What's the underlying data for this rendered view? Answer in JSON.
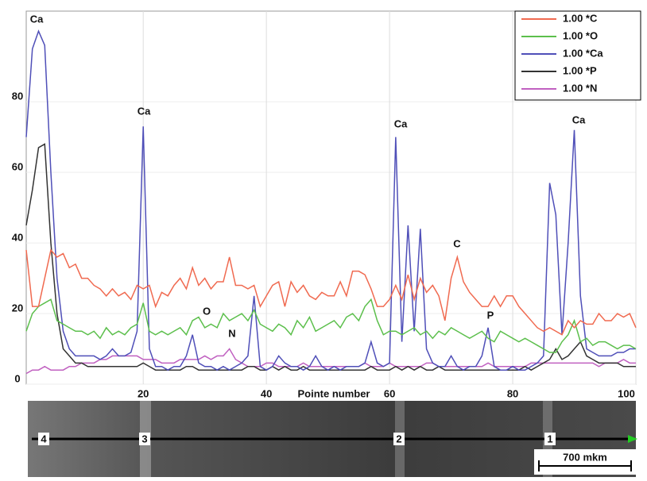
{
  "chart_data": {
    "type": "line",
    "x_label": "Pointe number",
    "x": [
      1,
      2,
      3,
      4,
      5,
      6,
      7,
      8,
      9,
      10,
      11,
      12,
      13,
      14,
      15,
      16,
      17,
      18,
      19,
      20,
      21,
      22,
      23,
      24,
      25,
      26,
      27,
      28,
      29,
      30,
      31,
      32,
      33,
      34,
      35,
      36,
      37,
      38,
      39,
      40,
      41,
      42,
      43,
      44,
      45,
      46,
      47,
      48,
      49,
      50,
      51,
      52,
      53,
      54,
      55,
      56,
      57,
      58,
      59,
      60,
      61,
      62,
      63,
      64,
      65,
      66,
      67,
      68,
      69,
      70,
      71,
      72,
      73,
      74,
      75,
      76,
      77,
      78,
      79,
      80,
      81,
      82,
      83,
      84,
      85,
      86,
      87,
      88,
      89,
      90,
      91,
      92,
      93,
      94,
      95,
      96,
      97,
      98,
      99,
      100
    ],
    "series": [
      {
        "name": "1.00 *C",
        "color": "#f06a50",
        "values": [
          38,
          22,
          22,
          30,
          38,
          36,
          37,
          33,
          34,
          30,
          30,
          28,
          27,
          25,
          27,
          25,
          26,
          24,
          28,
          27,
          28,
          22,
          26,
          25,
          28,
          30,
          27,
          33,
          28,
          30,
          27,
          29,
          29,
          36,
          28,
          28,
          27,
          28,
          22,
          25,
          28,
          29,
          22,
          29,
          26,
          28,
          25,
          24,
          26,
          25,
          25,
          29,
          25,
          32,
          32,
          31,
          27,
          22,
          22,
          24,
          28,
          24,
          31,
          24,
          30,
          26,
          28,
          25,
          18,
          30,
          36,
          29,
          26,
          24,
          22,
          22,
          25,
          22,
          25,
          25,
          22,
          20,
          18,
          16,
          15,
          16,
          15,
          14,
          18,
          16,
          18,
          17,
          17,
          20,
          18,
          18,
          20,
          19,
          20,
          16
        ]
      },
      {
        "name": "1.00 *O",
        "color": "#5cbf4c",
        "values": [
          15,
          20,
          22,
          23,
          24,
          18,
          17,
          16,
          15,
          15,
          14,
          15,
          13,
          16,
          14,
          15,
          14,
          16,
          17,
          23,
          15,
          14,
          15,
          14,
          15,
          16,
          14,
          18,
          19,
          16,
          17,
          16,
          20,
          18,
          19,
          20,
          18,
          21,
          17,
          16,
          15,
          17,
          16,
          14,
          18,
          16,
          19,
          15,
          16,
          17,
          18,
          16,
          19,
          20,
          18,
          22,
          24,
          18,
          14,
          15,
          15,
          14,
          15,
          16,
          14,
          15,
          13,
          15,
          14,
          16,
          15,
          14,
          13,
          14,
          15,
          13,
          12,
          15,
          14,
          13,
          12,
          13,
          12,
          11,
          10,
          9,
          9,
          12,
          14,
          18,
          12,
          13,
          11,
          12,
          12,
          11,
          10,
          11,
          11,
          10
        ]
      },
      {
        "name": "1.00 *Ca",
        "color": "#4f4fb8",
        "values": [
          70,
          95,
          100,
          96,
          60,
          30,
          15,
          10,
          8,
          8,
          8,
          8,
          7,
          8,
          10,
          8,
          8,
          9,
          15,
          73,
          10,
          5,
          5,
          4,
          5,
          5,
          8,
          14,
          6,
          5,
          5,
          4,
          5,
          4,
          5,
          6,
          8,
          25,
          5,
          4,
          5,
          8,
          6,
          5,
          5,
          4,
          5,
          8,
          5,
          4,
          5,
          4,
          5,
          5,
          5,
          6,
          12,
          6,
          5,
          6,
          70,
          12,
          45,
          15,
          44,
          10,
          6,
          5,
          5,
          8,
          5,
          4,
          5,
          5,
          8,
          16,
          5,
          4,
          4,
          5,
          4,
          4,
          5,
          6,
          8,
          57,
          48,
          14,
          40,
          72,
          25,
          10,
          9,
          8,
          8,
          8,
          9,
          9,
          10,
          10
        ]
      },
      {
        "name": "1.00 *P",
        "color": "#333333",
        "values": [
          45,
          55,
          67,
          68,
          40,
          20,
          10,
          8,
          6,
          6,
          5,
          5,
          5,
          5,
          5,
          5,
          5,
          5,
          5,
          6,
          5,
          4,
          4,
          4,
          4,
          4,
          5,
          5,
          4,
          4,
          4,
          4,
          4,
          4,
          4,
          4,
          5,
          5,
          4,
          4,
          5,
          4,
          5,
          4,
          4,
          5,
          4,
          4,
          4,
          4,
          4,
          4,
          4,
          4,
          4,
          4,
          5,
          4,
          4,
          4,
          5,
          4,
          5,
          4,
          5,
          4,
          4,
          5,
          4,
          4,
          4,
          4,
          4,
          4,
          4,
          4,
          4,
          4,
          4,
          4,
          4,
          5,
          4,
          5,
          6,
          7,
          10,
          7,
          8,
          10,
          12,
          8,
          7,
          6,
          6,
          6,
          6,
          5,
          5,
          5
        ]
      },
      {
        "name": "1.00 *N",
        "color": "#c060c0",
        "values": [
          3,
          4,
          4,
          5,
          4,
          4,
          4,
          5,
          5,
          6,
          6,
          6,
          7,
          7,
          8,
          8,
          8,
          8,
          8,
          7,
          7,
          7,
          6,
          6,
          6,
          7,
          7,
          7,
          7,
          8,
          7,
          8,
          8,
          10,
          7,
          6,
          5,
          5,
          5,
          6,
          6,
          5,
          5,
          5,
          5,
          6,
          5,
          5,
          5,
          5,
          5,
          5,
          5,
          5,
          5,
          6,
          5,
          5,
          5,
          6,
          5,
          5,
          5,
          5,
          5,
          6,
          6,
          5,
          5,
          5,
          5,
          5,
          5,
          5,
          5,
          6,
          5,
          5,
          5,
          5,
          5,
          5,
          6,
          6,
          6,
          6,
          6,
          6,
          6,
          6,
          6,
          6,
          6,
          5,
          6,
          6,
          6,
          7,
          6,
          6
        ]
      }
    ],
    "annotations": [
      "Ca",
      "Ca",
      "O",
      "N",
      "Ca",
      "C",
      "P",
      "Ca"
    ],
    "xlim": [
      1,
      100
    ],
    "xticks": [
      20,
      40,
      60,
      80,
      100
    ],
    "ylim": [
      0,
      105
    ],
    "yticks": [
      0,
      20,
      40,
      60,
      80
    ],
    "grid": true,
    "legend": "top-right"
  },
  "micrograph": {
    "points": [
      "4",
      "3",
      "2",
      "1"
    ],
    "scale": "700 mkm"
  }
}
